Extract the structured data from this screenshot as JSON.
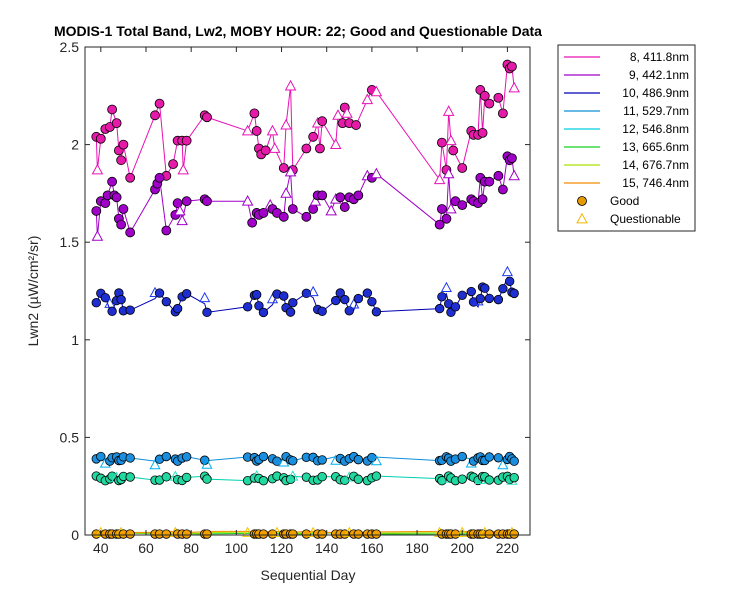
{
  "chart_data": {
    "type": "line",
    "title": "MODIS-1 Total Band, Lw2, MOBY HOUR: 22;  Good and Questionable Data",
    "xlabel": "Sequential Day",
    "ylabel": "Lwn2 (µW/cm²/sr)",
    "xlim": [
      33,
      230
    ],
    "ylim": [
      0,
      2.5
    ],
    "xticks": [
      "40",
      "60",
      "80",
      "100",
      "120",
      "140",
      "160",
      "180",
      "200",
      "220"
    ],
    "yticks": [
      "0",
      "0.5",
      "1",
      "1.5",
      "2",
      "2.5"
    ],
    "legend_position": "outside-top-right",
    "marker_legend": [
      {
        "label": "Good",
        "marker": "circle",
        "color": "#e69a00"
      },
      {
        "label": "Questionable",
        "marker": "triangle",
        "color": "#f2b600"
      }
    ],
    "series": [
      {
        "name": "8, 411.8nm",
        "color": "#e812b4",
        "points": [
          [
            38,
            2.04,
            "g"
          ],
          [
            38.5,
            1.87,
            "q"
          ],
          [
            40,
            2.03,
            "g"
          ],
          [
            42,
            2.08,
            "g"
          ],
          [
            44,
            2.09,
            "g"
          ],
          [
            45,
            2.18,
            "g"
          ],
          [
            47,
            2.11,
            "g"
          ],
          [
            48,
            1.97,
            "g"
          ],
          [
            49,
            1.92,
            "g"
          ],
          [
            50,
            2.0,
            "g"
          ],
          [
            53,
            1.83,
            "g"
          ],
          [
            64,
            2.15,
            "g"
          ],
          [
            66,
            2.21,
            "g"
          ],
          [
            69,
            1.84,
            "g"
          ],
          [
            72,
            1.9,
            "g"
          ],
          [
            74,
            2.02,
            "g"
          ],
          [
            76,
            2.02,
            "g"
          ],
          [
            76.5,
            1.87,
            "q"
          ],
          [
            78,
            2.02,
            "g"
          ],
          [
            86,
            2.15,
            "g"
          ],
          [
            87,
            2.14,
            "g"
          ],
          [
            105,
            2.07,
            "q"
          ],
          [
            108,
            2.16,
            "g"
          ],
          [
            109,
            2.07,
            "g"
          ],
          [
            110,
            1.98,
            "g"
          ],
          [
            111,
            1.95,
            "g"
          ],
          [
            113,
            1.97,
            "g"
          ],
          [
            116,
            2.07,
            "q"
          ],
          [
            117,
            1.98,
            "q"
          ],
          [
            121,
            1.88,
            "g"
          ],
          [
            122,
            2.1,
            "q"
          ],
          [
            124,
            2.3,
            "q"
          ],
          [
            125,
            1.87,
            "g"
          ],
          [
            131,
            1.98,
            "g"
          ],
          [
            134,
            2.04,
            "g"
          ],
          [
            136,
            2.11,
            "q"
          ],
          [
            137,
            1.98,
            "g"
          ],
          [
            138,
            2.12,
            "g"
          ],
          [
            144,
            2.0,
            "q"
          ],
          [
            145,
            2.15,
            "q"
          ],
          [
            147,
            2.11,
            "g"
          ],
          [
            148,
            2.19,
            "g"
          ],
          [
            149,
            2.16,
            "q"
          ],
          [
            150,
            2.11,
            "g"
          ],
          [
            153,
            2.1,
            "g"
          ],
          [
            158,
            2.23,
            "q"
          ],
          [
            160,
            2.28,
            "g"
          ],
          [
            162,
            2.27,
            "q"
          ],
          [
            190,
            1.82,
            "q"
          ],
          [
            191,
            2.01,
            "g"
          ],
          [
            193,
            1.87,
            "g"
          ],
          [
            194,
            2.17,
            "q"
          ],
          [
            195,
            2.02,
            "q"
          ],
          [
            196,
            1.97,
            "g"
          ],
          [
            200,
            1.88,
            "g"
          ],
          [
            204,
            2.07,
            "g"
          ],
          [
            205,
            2.05,
            "g"
          ],
          [
            207,
            2.05,
            "g"
          ],
          [
            208,
            2.28,
            "g"
          ],
          [
            209,
            2.06,
            "g"
          ],
          [
            210,
            2.25,
            "g"
          ],
          [
            212,
            2.21,
            "g"
          ],
          [
            216,
            2.24,
            "g"
          ],
          [
            218,
            2.16,
            "g"
          ],
          [
            220,
            2.41,
            "g"
          ],
          [
            221,
            2.39,
            "g"
          ],
          [
            222,
            2.4,
            "g"
          ],
          [
            223,
            2.29,
            "q"
          ]
        ]
      },
      {
        "name": "9, 442.1nm",
        "color": "#a000c8",
        "points": [
          [
            38,
            1.66,
            "g"
          ],
          [
            38.5,
            1.53,
            "q"
          ],
          [
            40,
            1.71,
            "g"
          ],
          [
            42,
            1.7,
            "g"
          ],
          [
            43,
            1.74,
            "g"
          ],
          [
            45,
            1.81,
            "g"
          ],
          [
            46,
            1.74,
            "g"
          ],
          [
            47,
            1.73,
            "g"
          ],
          [
            48,
            1.62,
            "g"
          ],
          [
            49,
            1.59,
            "g"
          ],
          [
            50,
            1.67,
            "g"
          ],
          [
            53,
            1.55,
            "g"
          ],
          [
            64,
            1.77,
            "g"
          ],
          [
            65,
            1.8,
            "g"
          ],
          [
            66,
            1.83,
            "g"
          ],
          [
            69,
            1.56,
            "g"
          ],
          [
            73,
            1.64,
            "g"
          ],
          [
            74,
            1.7,
            "g"
          ],
          [
            75,
            1.66,
            "q"
          ],
          [
            76,
            1.61,
            "q"
          ],
          [
            78,
            1.71,
            "g"
          ],
          [
            86,
            1.72,
            "g"
          ],
          [
            87,
            1.71,
            "g"
          ],
          [
            105,
            1.71,
            "q"
          ],
          [
            107,
            1.6,
            "g"
          ],
          [
            109,
            1.65,
            "g"
          ],
          [
            110,
            1.64,
            "g"
          ],
          [
            112,
            1.65,
            "g"
          ],
          [
            115,
            1.69,
            "q"
          ],
          [
            116,
            1.67,
            "g"
          ],
          [
            118,
            1.65,
            "g"
          ],
          [
            121,
            1.63,
            "g"
          ],
          [
            122,
            1.75,
            "q"
          ],
          [
            124,
            1.86,
            "q"
          ],
          [
            125,
            1.67,
            "g"
          ],
          [
            131,
            1.63,
            "g"
          ],
          [
            134,
            1.67,
            "g"
          ],
          [
            135,
            1.71,
            "q"
          ],
          [
            136,
            1.74,
            "g"
          ],
          [
            138,
            1.74,
            "g"
          ],
          [
            142,
            1.66,
            "q"
          ],
          [
            144,
            1.72,
            "q"
          ],
          [
            146,
            1.73,
            "g"
          ],
          [
            148,
            1.68,
            "g"
          ],
          [
            150,
            1.73,
            "g"
          ],
          [
            152,
            1.72,
            "g"
          ],
          [
            154,
            1.74,
            "g"
          ],
          [
            158,
            1.84,
            "q"
          ],
          [
            160,
            1.83,
            "g"
          ],
          [
            162,
            1.85,
            "q"
          ],
          [
            190,
            1.59,
            "g"
          ],
          [
            191,
            1.67,
            "g"
          ],
          [
            193,
            1.62,
            "g"
          ],
          [
            194,
            1.85,
            "q"
          ],
          [
            195,
            1.67,
            "q"
          ],
          [
            197,
            1.71,
            "g"
          ],
          [
            200,
            1.69,
            "g"
          ],
          [
            204,
            1.72,
            "g"
          ],
          [
            205,
            1.71,
            "g"
          ],
          [
            207,
            1.7,
            "g"
          ],
          [
            208,
            1.83,
            "g"
          ],
          [
            209,
            1.72,
            "g"
          ],
          [
            210,
            1.81,
            "g"
          ],
          [
            212,
            1.81,
            "g"
          ],
          [
            216,
            1.84,
            "g"
          ],
          [
            218,
            1.77,
            "g"
          ],
          [
            220,
            1.94,
            "g"
          ],
          [
            221,
            1.92,
            "g"
          ],
          [
            222,
            1.93,
            "g"
          ],
          [
            223,
            1.84,
            "q"
          ]
        ]
      },
      {
        "name": "10, 486.9nm",
        "color": "#0000b4",
        "points": []
      },
      {
        "name": "11, 529.7nm",
        "color": "#0d8fd8",
        "points": []
      },
      {
        "name": "12, 546.8nm",
        "color": "#00d0e0",
        "points": []
      },
      {
        "name": "13, 665.6nm",
        "color": "#14d21e",
        "points": []
      },
      {
        "name": "14, 676.7nm",
        "color": "#aae000",
        "points": []
      },
      {
        "name": "15, 746.4nm",
        "color": "#f08c00",
        "points": []
      }
    ]
  }
}
